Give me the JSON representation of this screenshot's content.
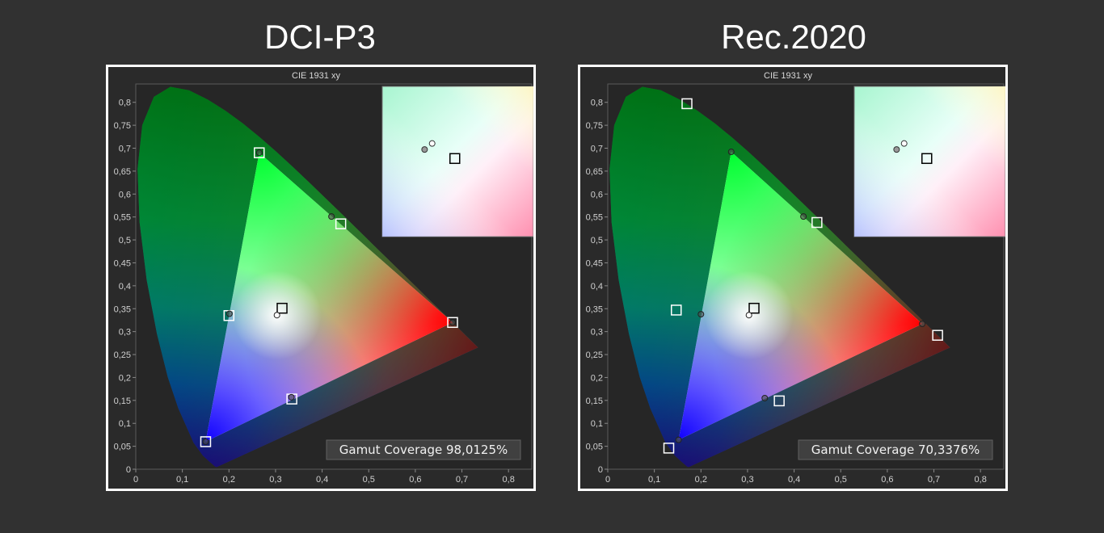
{
  "headings": {
    "left": "DCI-P3",
    "right": "Rec.2020"
  },
  "chart_data": [
    {
      "type": "scatter",
      "title": "CIE 1931 xy",
      "xlim": [
        0,
        0.85
      ],
      "ylim": [
        0,
        0.84
      ],
      "xticks": [
        "0",
        "0,1",
        "0,2",
        "0,3",
        "0,4",
        "0,5",
        "0,6",
        "0,7",
        "0,8"
      ],
      "yticks": [
        "0",
        "0,05",
        "0,1",
        "0,15",
        "0,2",
        "0,25",
        "0,3",
        "0,35",
        "0,4",
        "0,45",
        "0,5",
        "0,55",
        "0,6",
        "0,65",
        "0,7",
        "0,75",
        "0,8"
      ],
      "gamut_label": "Gamut Coverage 98,0125%",
      "target": {
        "red": [
          0.68,
          0.32
        ],
        "green": [
          0.265,
          0.69
        ],
        "blue": [
          0.15,
          0.06
        ],
        "white": [
          0.314,
          0.351
        ],
        "cyan": [
          0.2,
          0.335
        ],
        "yellow": [
          0.44,
          0.535
        ],
        "magenta": [
          0.335,
          0.153
        ]
      },
      "measured": {
        "red": [
          0.68,
          0.32
        ],
        "green": [
          0.265,
          0.69
        ],
        "blue": [
          0.15,
          0.06
        ],
        "white": [
          0.303,
          0.336
        ],
        "cyan": [
          0.201,
          0.339
        ],
        "yellow": [
          0.42,
          0.551
        ],
        "magenta": [
          0.334,
          0.157
        ]
      },
      "inset": {
        "target": [
          0.48,
          0.48
        ],
        "measured": [
          [
            0.28,
            0.42
          ],
          [
            0.33,
            0.38
          ]
        ]
      }
    },
    {
      "type": "scatter",
      "title": "CIE 1931 xy",
      "xlim": [
        0,
        0.85
      ],
      "ylim": [
        0,
        0.84
      ],
      "xticks": [
        "0",
        "0,1",
        "0,2",
        "0,3",
        "0,4",
        "0,5",
        "0,6",
        "0,7",
        "0,8"
      ],
      "yticks": [
        "0",
        "0,05",
        "0,1",
        "0,15",
        "0,2",
        "0,25",
        "0,3",
        "0,35",
        "0,4",
        "0,45",
        "0,5",
        "0,55",
        "0,6",
        "0,65",
        "0,7",
        "0,75",
        "0,8"
      ],
      "gamut_label": "Gamut Coverage 70,3376%",
      "target": {
        "red": [
          0.708,
          0.292
        ],
        "green": [
          0.17,
          0.797
        ],
        "blue": [
          0.131,
          0.046
        ],
        "white": [
          0.314,
          0.351
        ],
        "cyan": [
          0.147,
          0.347
        ],
        "yellow": [
          0.449,
          0.538
        ],
        "magenta": [
          0.368,
          0.149
        ]
      },
      "measured": {
        "red": [
          0.675,
          0.317
        ],
        "green": [
          0.265,
          0.692
        ],
        "blue": [
          0.152,
          0.064
        ],
        "white": [
          0.303,
          0.336
        ],
        "cyan": [
          0.2,
          0.338
        ],
        "yellow": [
          0.42,
          0.551
        ],
        "magenta": [
          0.337,
          0.155
        ]
      },
      "inset": {
        "target": [
          0.48,
          0.48
        ],
        "measured": [
          [
            0.28,
            0.42
          ],
          [
            0.33,
            0.38
          ]
        ]
      }
    }
  ]
}
